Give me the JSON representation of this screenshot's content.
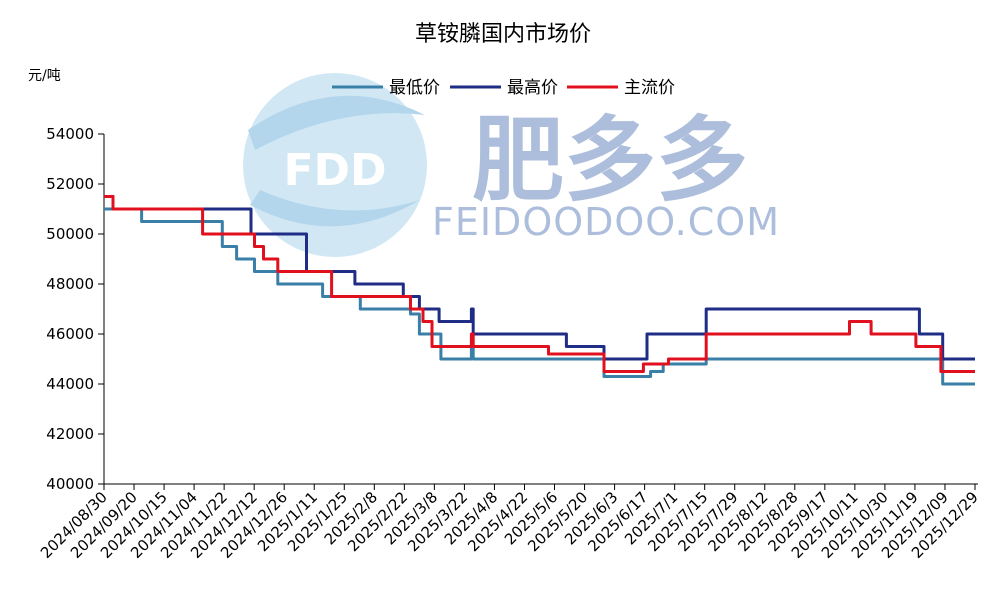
{
  "chart_data": {
    "type": "line",
    "title": "草铵膦国内市场价",
    "unit_label": "元/吨",
    "ylim": [
      40000,
      54000
    ],
    "yticks": [
      "40000",
      "42000",
      "44000",
      "46000",
      "48000",
      "50000",
      "52000",
      "54000"
    ],
    "x_start": "2024-08-30",
    "x_end": "2025-12-29",
    "xticks": [
      "2024/08/30",
      "2024/09/20",
      "2024/10/15",
      "2024/11/04",
      "2024/11/22",
      "2024/12/12",
      "2024/12/26",
      "2025/1/11",
      "2025/1/25",
      "2025/2/8",
      "2025/2/22",
      "2025/3/8",
      "2025/3/22",
      "2025/4/8",
      "2025/4/22",
      "2025/5/6",
      "2025/5/20",
      "2025/6/3",
      "2025/6/17",
      "2025/7/1",
      "2025/7/15",
      "2025/7/29",
      "2025/8/12",
      "2025/8/28",
      "2025/9/17",
      "2025/10/11",
      "2025/10/30",
      "2025/11/19",
      "2025/12/09",
      "2025/12/29"
    ],
    "series": [
      {
        "name": "最低价",
        "color": "#3a7fa8",
        "points": [
          [
            "2024-08-30",
            51000
          ],
          [
            "2024-09-20",
            50500
          ],
          [
            "2024-11-04",
            49500
          ],
          [
            "2024-11-12",
            49000
          ],
          [
            "2024-11-22",
            48500
          ],
          [
            "2024-12-05",
            48000
          ],
          [
            "2024-12-30",
            47500
          ],
          [
            "2025-01-20",
            47000
          ],
          [
            "2025-02-17",
            46800
          ],
          [
            "2025-02-22",
            46000
          ],
          [
            "2025-03-06",
            45000
          ],
          [
            "2025-03-22",
            45000
          ],
          [
            "2025-03-23",
            45500
          ],
          [
            "2025-03-24",
            45000
          ],
          [
            "2025-06-05",
            44300
          ],
          [
            "2025-07-01",
            44500
          ],
          [
            "2025-07-08",
            44800
          ],
          [
            "2025-08-01",
            45000
          ],
          [
            "2025-12-11",
            44000
          ],
          [
            "2025-12-29",
            44000
          ]
        ]
      },
      {
        "name": "最高价",
        "color": "#1f2d86",
        "points": [
          [
            "2024-08-30",
            51500
          ],
          [
            "2024-09-04",
            51000
          ],
          [
            "2024-11-20",
            50000
          ],
          [
            "2024-12-21",
            48500
          ],
          [
            "2025-01-17",
            48000
          ],
          [
            "2025-02-13",
            47500
          ],
          [
            "2025-02-22",
            47000
          ],
          [
            "2025-03-05",
            46500
          ],
          [
            "2025-03-23",
            47000
          ],
          [
            "2025-03-24",
            46000
          ],
          [
            "2025-05-15",
            45500
          ],
          [
            "2025-06-05",
            45000
          ],
          [
            "2025-06-29",
            46000
          ],
          [
            "2025-08-01",
            47000
          ],
          [
            "2025-11-28",
            46000
          ],
          [
            "2025-12-11",
            45000
          ],
          [
            "2025-12-29",
            45000
          ]
        ]
      },
      {
        "name": "主流价",
        "color": "#e0101e",
        "points": [
          [
            "2024-08-30",
            51500
          ],
          [
            "2024-09-04",
            51000
          ],
          [
            "2024-10-24",
            50000
          ],
          [
            "2024-11-22",
            49500
          ],
          [
            "2024-11-27",
            49000
          ],
          [
            "2024-12-05",
            48500
          ],
          [
            "2025-01-04",
            47500
          ],
          [
            "2025-02-17",
            47000
          ],
          [
            "2025-02-24",
            46500
          ],
          [
            "2025-03-01",
            45500
          ],
          [
            "2025-03-23",
            46000
          ],
          [
            "2025-03-24",
            45500
          ],
          [
            "2025-05-05",
            45200
          ],
          [
            "2025-06-05",
            44500
          ],
          [
            "2025-06-27",
            44800
          ],
          [
            "2025-07-11",
            45000
          ],
          [
            "2025-08-01",
            46000
          ],
          [
            "2025-10-20",
            46500
          ],
          [
            "2025-11-01",
            46000
          ],
          [
            "2025-11-26",
            45500
          ],
          [
            "2025-12-10",
            44500
          ],
          [
            "2025-12-29",
            44500
          ]
        ]
      }
    ],
    "legend_position": "top-center",
    "grid": false
  },
  "watermark": {
    "logo_text": "FDD",
    "brand_text": "肥多多",
    "site_text": "FEIDOODOO.COM"
  }
}
